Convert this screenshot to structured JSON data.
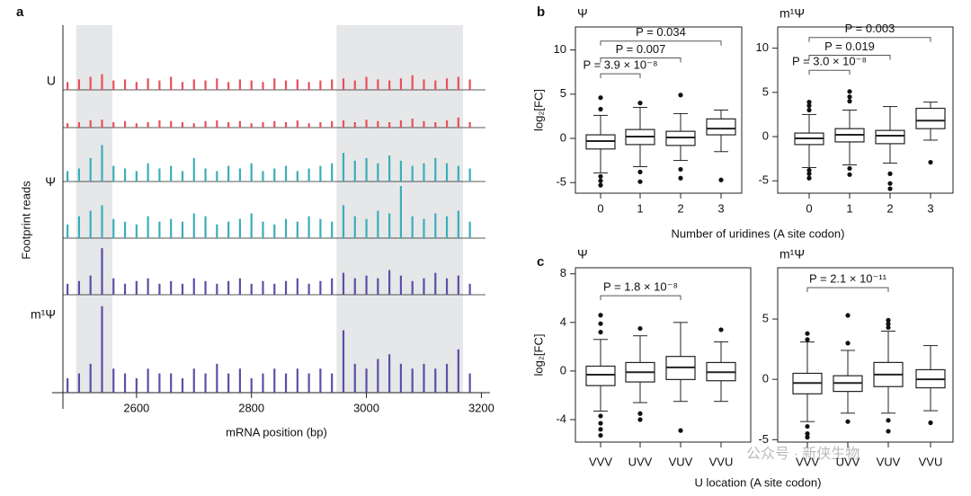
{
  "watermark": "公众号 · 新侠生物",
  "chart_data": [
    {
      "type": "track",
      "panel": "a",
      "ylabel": "Footprint reads",
      "xlabel": "mRNA position (bp)",
      "xlim": [
        2472,
        3215
      ],
      "xticks": [
        2600,
        2800,
        3000,
        3200
      ],
      "ylim": [
        0,
        100
      ],
      "shaded": [
        [
          2495,
          2558
        ],
        [
          2948,
          3168
        ]
      ],
      "x": [
        2480,
        2500,
        2520,
        2540,
        2560,
        2580,
        2600,
        2620,
        2640,
        2660,
        2680,
        2700,
        2720,
        2740,
        2760,
        2780,
        2800,
        2820,
        2840,
        2860,
        2880,
        2900,
        2920,
        2940,
        2960,
        2980,
        3000,
        3020,
        3040,
        3060,
        3080,
        3100,
        3120,
        3140,
        3160,
        3180
      ],
      "groups": [
        {
          "name": "U",
          "color": "#e8505b",
          "tracks": [
            [
              15,
              20,
              25,
              30,
              18,
              20,
              15,
              22,
              18,
              25,
              15,
              20,
              18,
              22,
              15,
              20,
              18,
              15,
              22,
              18,
              20,
              15,
              18,
              20,
              22,
              18,
              25,
              20,
              18,
              22,
              28,
              20,
              18,
              22,
              25,
              20
            ],
            [
              12,
              15,
              20,
              22,
              15,
              18,
              12,
              15,
              20,
              18,
              15,
              12,
              18,
              20,
              15,
              18,
              12,
              15,
              18,
              15,
              20,
              12,
              15,
              18,
              20,
              15,
              22,
              18,
              15,
              20,
              25,
              18,
              15,
              20,
              28,
              15
            ]
          ]
        },
        {
          "name": "Ψ",
          "color": "#3aaeb8",
          "tracks": [
            [
              20,
              25,
              45,
              70,
              30,
              25,
              20,
              35,
              25,
              30,
              20,
              45,
              25,
              20,
              30,
              25,
              35,
              20,
              25,
              30,
              20,
              25,
              30,
              35,
              55,
              40,
              45,
              35,
              50,
              40,
              30,
              35,
              45,
              35,
              30,
              25
            ],
            [
              25,
              40,
              50,
              60,
              35,
              30,
              25,
              40,
              30,
              35,
              30,
              45,
              40,
              25,
              30,
              35,
              45,
              30,
              25,
              35,
              30,
              40,
              35,
              30,
              60,
              40,
              35,
              50,
              45,
              95,
              40,
              35,
              45,
              40,
              50,
              30
            ]
          ]
        },
        {
          "name": "m¹Ψ",
          "color": "#5b4fa8",
          "tracks": [
            [
              20,
              25,
              35,
              85,
              30,
              20,
              25,
              30,
              20,
              25,
              20,
              30,
              25,
              20,
              25,
              30,
              20,
              25,
              20,
              25,
              30,
              20,
              25,
              30,
              40,
              30,
              35,
              30,
              45,
              35,
              25,
              30,
              40,
              30,
              35,
              20
            ],
            [
              15,
              20,
              30,
              90,
              25,
              20,
              15,
              25,
              20,
              20,
              15,
              25,
              20,
              30,
              20,
              25,
              15,
              20,
              25,
              20,
              25,
              20,
              25,
              20,
              65,
              30,
              25,
              35,
              40,
              30,
              25,
              30,
              25,
              30,
              45,
              20
            ]
          ]
        }
      ]
    },
    {
      "type": "box",
      "panel": "b",
      "title": "Ψ",
      "ylabel": "log₂[FC]",
      "xlabel": "Number of uridines (A site codon)",
      "categories": [
        "0",
        "1",
        "2",
        "3"
      ],
      "ylim": [
        -6.2,
        12.6
      ],
      "yticks": [
        -5,
        0,
        5,
        10
      ],
      "boxes": [
        {
          "whisker_low": -3.9,
          "q1": -1.2,
          "median": -0.3,
          "q3": 0.4,
          "whisker_high": 2.6,
          "outliers": [
            4.6,
            3.3,
            -4.3,
            -4.8,
            -5.3
          ]
        },
        {
          "whisker_low": -3.2,
          "q1": -0.7,
          "median": 0.2,
          "q3": 1.0,
          "whisker_high": 3.5,
          "outliers": [
            4.0,
            -3.8,
            -4.9
          ]
        },
        {
          "whisker_low": -2.5,
          "q1": -0.8,
          "median": 0.1,
          "q3": 0.8,
          "whisker_high": 2.8,
          "outliers": [
            4.9,
            -3.5,
            -4.5
          ]
        },
        {
          "whisker_low": -1.5,
          "q1": 0.4,
          "median": 1.1,
          "q3": 2.2,
          "whisker_high": 3.2,
          "outliers": [
            -4.7
          ]
        }
      ],
      "brackets": [
        {
          "from": 0,
          "to": 1,
          "y": 7.3,
          "label": "P = 3.9 × 10⁻⁸"
        },
        {
          "from": 0,
          "to": 2,
          "y": 9.1,
          "label": "P = 0.007"
        },
        {
          "from": 0,
          "to": 3,
          "y": 11.0,
          "label": "P = 0.034"
        }
      ]
    },
    {
      "type": "box",
      "title": "m¹Ψ",
      "categories": [
        "0",
        "1",
        "2",
        "3"
      ],
      "ylim": [
        -6.4,
        12.4
      ],
      "yticks": [
        -5,
        0,
        5,
        10
      ],
      "boxes": [
        {
          "whisker_low": -3.5,
          "q1": -0.9,
          "median": -0.2,
          "q3": 0.4,
          "whisker_high": 2.5,
          "outliers": [
            3.9,
            3.5,
            3.0,
            -3.8,
            -4.2,
            -4.7
          ]
        },
        {
          "whisker_low": -3.2,
          "q1": -0.6,
          "median": 0.2,
          "q3": 0.9,
          "whisker_high": 3.0,
          "outliers": [
            5.1,
            4.5,
            4.0,
            -3.6,
            -4.3
          ]
        },
        {
          "whisker_low": -3.0,
          "q1": -0.8,
          "median": 0.1,
          "q3": 0.7,
          "whisker_high": 3.4,
          "outliers": [
            -4.2,
            -5.3,
            -5.9
          ]
        },
        {
          "whisker_low": -0.4,
          "q1": 0.9,
          "median": 1.8,
          "q3": 3.2,
          "whisker_high": 3.9,
          "outliers": [
            -2.9
          ]
        }
      ],
      "brackets": [
        {
          "from": 0,
          "to": 1,
          "y": 7.5,
          "label": "P = 3.0 × 10⁻⁸"
        },
        {
          "from": 0,
          "to": 2,
          "y": 9.2,
          "label": "P = 0.019"
        },
        {
          "from": 0,
          "to": 3,
          "y": 11.2,
          "label": "P = 0.003"
        }
      ]
    },
    {
      "type": "box",
      "panel": "c",
      "title": "Ψ",
      "ylabel": "log₂[FC]",
      "xlabel": "U location (A site codon)",
      "categories": [
        "VVV",
        "UVV",
        "VUV",
        "VVU"
      ],
      "ylim": [
        -5.85,
        8.5
      ],
      "yticks": [
        -4,
        0,
        4,
        8
      ],
      "boxes": [
        {
          "whisker_low": -3.3,
          "q1": -1.2,
          "median": -0.3,
          "q3": 0.4,
          "whisker_high": 2.6,
          "outliers": [
            4.6,
            3.9,
            3.2,
            -3.7,
            -4.3,
            -4.8,
            -5.3
          ]
        },
        {
          "whisker_low": -2.6,
          "q1": -0.9,
          "median": -0.1,
          "q3": 0.7,
          "whisker_high": 2.9,
          "outliers": [
            3.5,
            -3.5,
            -4.0
          ]
        },
        {
          "whisker_low": -2.5,
          "q1": -0.7,
          "median": 0.3,
          "q3": 1.2,
          "whisker_high": 4.0,
          "outliers": [
            -4.9
          ]
        },
        {
          "whisker_low": -2.5,
          "q1": -0.8,
          "median": -0.1,
          "q3": 0.7,
          "whisker_high": 2.4,
          "outliers": [
            3.4
          ]
        }
      ],
      "brackets": [
        {
          "from": 0,
          "to": 2,
          "y": 6.2,
          "label": "P = 1.8 × 10⁻⁸"
        }
      ]
    },
    {
      "type": "box",
      "title": "m¹Ψ",
      "categories": [
        "VVV",
        "UVV",
        "VUV",
        "VVU"
      ],
      "ylim": [
        -5.2,
        9.25
      ],
      "yticks": [
        -5,
        0,
        5
      ],
      "boxes": [
        {
          "whisker_low": -3.5,
          "q1": -1.2,
          "median": -0.3,
          "q3": 0.5,
          "whisker_high": 3.1,
          "outliers": [
            3.8,
            3.3,
            -3.9,
            -4.5,
            -4.8
          ]
        },
        {
          "whisker_low": -2.8,
          "q1": -1.0,
          "median": -0.3,
          "q3": 0.3,
          "whisker_high": 2.4,
          "outliers": [
            5.3,
            3.0,
            -3.5
          ]
        },
        {
          "whisker_low": -2.8,
          "q1": -0.6,
          "median": 0.4,
          "q3": 1.4,
          "whisker_high": 4.0,
          "outliers": [
            4.9,
            4.6,
            4.3,
            -3.4,
            -4.3
          ]
        },
        {
          "whisker_low": -2.6,
          "q1": -0.7,
          "median": 0.0,
          "q3": 0.8,
          "whisker_high": 2.8,
          "outliers": [
            -3.6
          ]
        }
      ],
      "brackets": [
        {
          "from": 0,
          "to": 2,
          "y": 7.6,
          "label": "P = 2.1 × 10⁻¹¹"
        }
      ]
    }
  ]
}
